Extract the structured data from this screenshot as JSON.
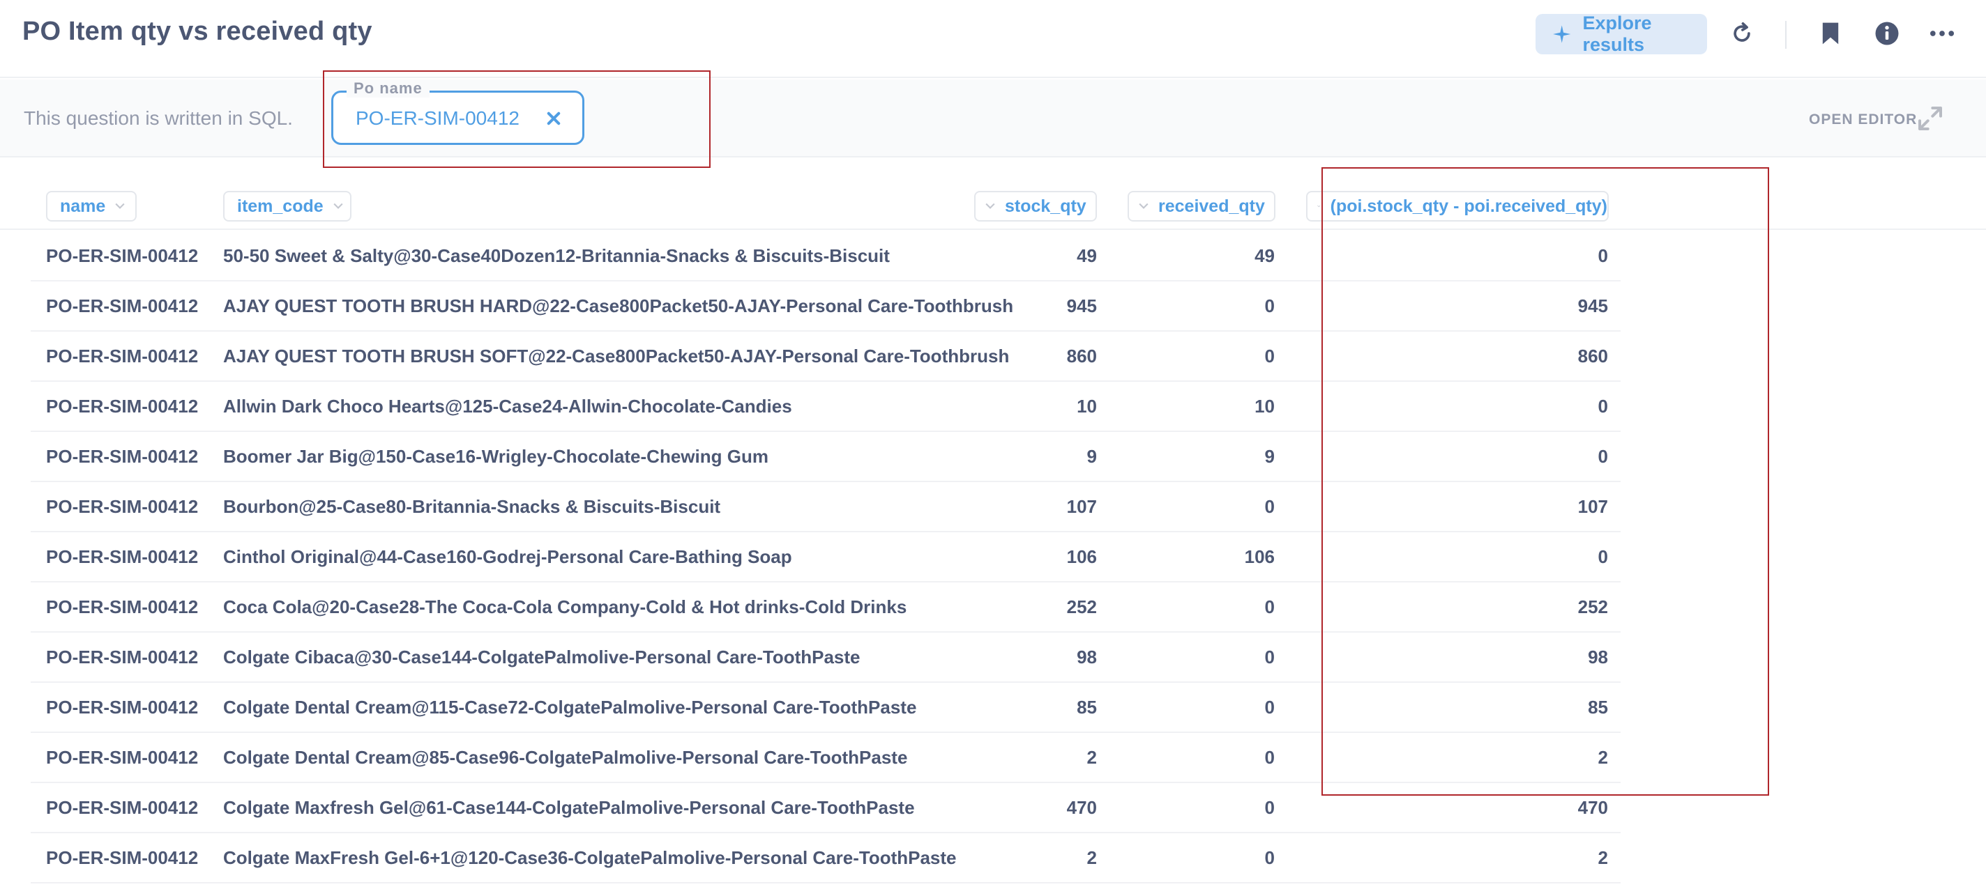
{
  "header": {
    "title": "PO Item qty vs received qty",
    "explore_label": "Explore results"
  },
  "sql_bar": {
    "note": "This question is written in SQL.",
    "filter_label": "Po name",
    "filter_value": "PO-ER-SIM-00412",
    "open_editor_label": "OPEN EDITOR"
  },
  "table": {
    "columns": [
      "name",
      "item_code",
      "stock_qty",
      "received_qty",
      "(poi.stock_qty - poi.received_qty)"
    ],
    "rows": [
      [
        "PO-ER-SIM-00412",
        "50-50 Sweet & Salty@30-Case40Dozen12-Britannia-Snacks & Biscuits-Biscuit",
        "49",
        "49",
        "0"
      ],
      [
        "PO-ER-SIM-00412",
        "AJAY QUEST TOOTH BRUSH HARD@22-Case800Packet50-AJAY-Personal Care-Toothbrush",
        "945",
        "0",
        "945"
      ],
      [
        "PO-ER-SIM-00412",
        "AJAY QUEST TOOTH BRUSH SOFT@22-Case800Packet50-AJAY-Personal Care-Toothbrush",
        "860",
        "0",
        "860"
      ],
      [
        "PO-ER-SIM-00412",
        "Allwin Dark Choco Hearts@125-Case24-Allwin-Chocolate-Candies",
        "10",
        "10",
        "0"
      ],
      [
        "PO-ER-SIM-00412",
        "Boomer Jar Big@150-Case16-Wrigley-Chocolate-Chewing Gum",
        "9",
        "9",
        "0"
      ],
      [
        "PO-ER-SIM-00412",
        "Bourbon@25-Case80-Britannia-Snacks & Biscuits-Biscuit",
        "107",
        "0",
        "107"
      ],
      [
        "PO-ER-SIM-00412",
        "Cinthol Original@44-Case160-Godrej-Personal Care-Bathing Soap",
        "106",
        "106",
        "0"
      ],
      [
        "PO-ER-SIM-00412",
        "Coca Cola@20-Case28-The Coca-Cola Company-Cold & Hot drinks-Cold Drinks",
        "252",
        "0",
        "252"
      ],
      [
        "PO-ER-SIM-00412",
        "Colgate Cibaca@30-Case144-ColgatePalmolive-Personal Care-ToothPaste",
        "98",
        "0",
        "98"
      ],
      [
        "PO-ER-SIM-00412",
        "Colgate Dental Cream@115-Case72-ColgatePalmolive-Personal Care-ToothPaste",
        "85",
        "0",
        "85"
      ],
      [
        "PO-ER-SIM-00412",
        "Colgate Dental Cream@85-Case96-ColgatePalmolive-Personal Care-ToothPaste",
        "2",
        "0",
        "2"
      ],
      [
        "PO-ER-SIM-00412",
        "Colgate Maxfresh Gel@61-Case144-ColgatePalmolive-Personal Care-ToothPaste",
        "470",
        "0",
        "470"
      ],
      [
        "PO-ER-SIM-00412",
        "Colgate MaxFresh Gel-6+1@120-Case36-ColgatePalmolive-Personal Care-ToothPaste",
        "2",
        "0",
        "2"
      ]
    ]
  },
  "icons": [
    "sparkle-icon",
    "refresh-icon",
    "bookmark-icon",
    "info-icon",
    "more-icon",
    "close-icon",
    "expand-icon",
    "chevron-down-icon"
  ],
  "colors": {
    "accent": "#509ee3",
    "text": "#4c5773",
    "muted": "#949aab",
    "annotation": "#b0262b"
  }
}
